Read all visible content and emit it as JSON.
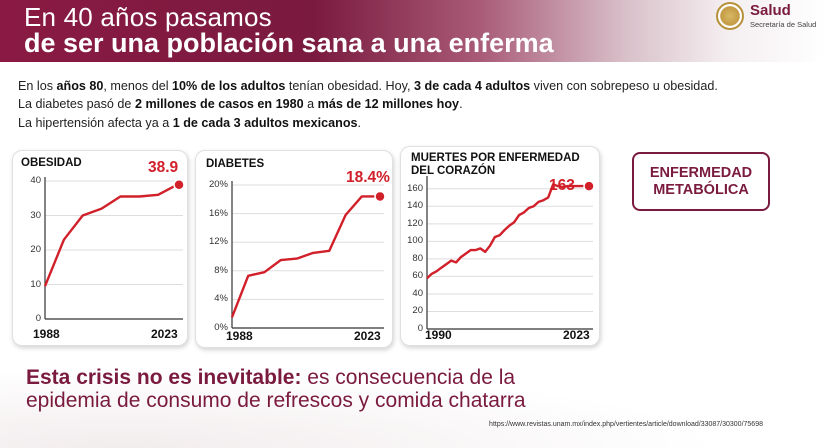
{
  "header": {
    "title_line1": "En 40 años pasamos",
    "title_line2": "de ser una población sana a una enferma"
  },
  "logo": {
    "title": "Salud",
    "subtitle": "Secretaría de Salud"
  },
  "intro": {
    "line1_a": "En los ",
    "line1_b": "años 80",
    "line1_c": ", menos del ",
    "line1_d": "10% de los adultos",
    "line1_e": " tenían obesidad. Hoy, ",
    "line1_f": "3 de cada 4 adultos",
    "line1_g": " viven con sobrepeso u obesidad.",
    "line2_a": "La diabetes pasó de ",
    "line2_b": "2 millones de casos en 1980",
    "line2_c": " a ",
    "line2_d": "más de 12 millones hoy",
    "line2_e": ".",
    "line3_a": "La hipertensión afecta ya a ",
    "line3_b": "1 de cada 3 adultos mexicanos",
    "line3_c": "."
  },
  "colors": {
    "brand": "#7a1a3e",
    "line": "#d1202a",
    "grid": "#dddddd"
  },
  "chart_data": [
    {
      "type": "line",
      "title": "OBESIDAD",
      "value_label": "38.9",
      "x_tick_labels": [
        "1988",
        "2023"
      ],
      "y_ticks": [
        "0",
        "10",
        "20",
        "30",
        "40"
      ],
      "ylim": [
        0,
        40
      ],
      "x": [
        0,
        1,
        2,
        3,
        4,
        5,
        6,
        7
      ],
      "values": [
        9.5,
        23,
        30,
        32,
        35.5,
        35.5,
        36,
        38.9
      ]
    },
    {
      "type": "line",
      "title": "DIABETES",
      "value_label": "18.4%",
      "x_tick_labels": [
        "1988",
        "2023"
      ],
      "y_ticks": [
        "0%",
        "4%",
        "8%",
        "12%",
        "16%",
        "20%"
      ],
      "ylim": [
        0,
        20
      ],
      "x": [
        0,
        1,
        2,
        3,
        4,
        5,
        6,
        7,
        8,
        9
      ],
      "values": [
        1.5,
        7.3,
        7.8,
        9.5,
        9.7,
        10.5,
        10.8,
        15.8,
        18.4,
        18.4
      ]
    },
    {
      "type": "line",
      "title": "MUERTES POR ENFERMEDAD DEL CORAZÓN",
      "value_label": "163",
      "x_tick_labels": [
        "1990",
        "2023"
      ],
      "y_ticks": [
        "0",
        "20",
        "40",
        "60",
        "80",
        "100",
        "120",
        "140",
        "160"
      ],
      "ylim": [
        0,
        170
      ],
      "x": [
        1990,
        1991,
        1992,
        1993,
        1994,
        1995,
        1996,
        1997,
        1998,
        1999,
        2000,
        2001,
        2002,
        2003,
        2004,
        2005,
        2006,
        2007,
        2008,
        2009,
        2010,
        2011,
        2012,
        2013,
        2014,
        2015,
        2016,
        2017,
        2018,
        2019,
        2020,
        2021,
        2022,
        2023
      ],
      "values": [
        58,
        63,
        66,
        70,
        74,
        78,
        76,
        82,
        86,
        90,
        90,
        92,
        88,
        95,
        105,
        107,
        113,
        118,
        122,
        130,
        133,
        138,
        140,
        145,
        147,
        150,
        165,
        163,
        162,
        163,
        163,
        163,
        163,
        163
      ]
    }
  ],
  "metabolic_box": {
    "line1": "ENFERMEDAD",
    "line2": "METABÓLICA"
  },
  "claim": {
    "bold": "Esta crisis no es inevitable:",
    "rest1": " es consecuencia de la",
    "line2": "epidemia de consumo de refrescos y comida chatarra"
  },
  "source": "https://www.revistas.unam.mx/index.php/vertientes/article/download/33087/30300/75698"
}
